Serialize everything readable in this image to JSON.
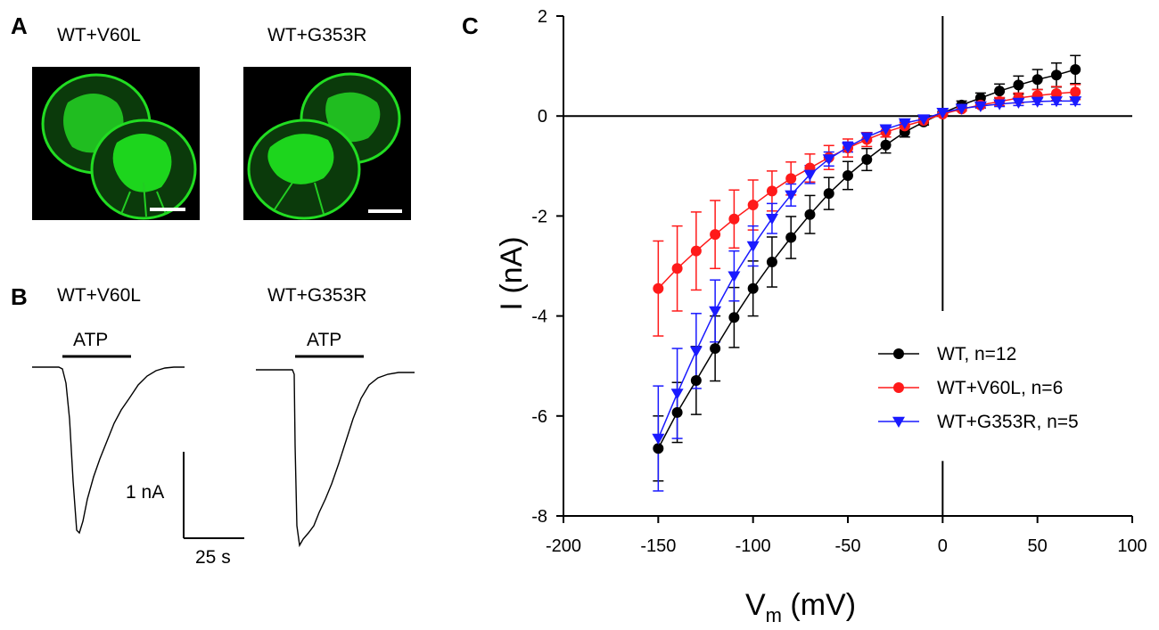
{
  "panels": {
    "a": {
      "letter": "A",
      "left_label": "WT+V60L",
      "right_label": "WT+G353R"
    },
    "b": {
      "letter": "B",
      "left_label": "WT+V60L",
      "right_label": "WT+G353R",
      "stimulus": "ATP",
      "scale_current": "1 nA",
      "scale_time": "25 s"
    },
    "c": {
      "letter": "C"
    }
  },
  "colors": {
    "fluorescence": "#1ee61e",
    "wt": "#000000",
    "v60l": "#ff1a1a",
    "g353r": "#1a1aff"
  },
  "chart_data": {
    "type": "scatter",
    "title": "",
    "xlabel_main": "V",
    "xlabel_sub": "m",
    "xlabel_unit": " (mV)",
    "ylabel": "I (nA)",
    "xlim": [
      -200,
      100
    ],
    "ylim": [
      -8,
      2
    ],
    "xticks": [
      -200,
      -150,
      -100,
      -50,
      0,
      50,
      100
    ],
    "yticks": [
      -8,
      -6,
      -4,
      -2,
      0,
      2
    ],
    "legend_position": "lower-right",
    "x": [
      -150,
      -140,
      -130,
      -120,
      -110,
      -100,
      -90,
      -80,
      -70,
      -60,
      -50,
      -40,
      -30,
      -20,
      -10,
      0,
      10,
      20,
      30,
      40,
      50,
      60,
      70
    ],
    "series": [
      {
        "name": "WT, n=12",
        "marker": "circle",
        "color": "#000000",
        "values": [
          -6.65,
          -5.93,
          -5.29,
          -4.65,
          -4.03,
          -3.45,
          -2.92,
          -2.43,
          -1.97,
          -1.55,
          -1.19,
          -0.87,
          -0.58,
          -0.32,
          -0.12,
          0.06,
          0.22,
          0.36,
          0.5,
          0.62,
          0.73,
          0.82,
          0.93
        ],
        "errors": [
          0.65,
          0.6,
          0.68,
          0.65,
          0.6,
          0.55,
          0.5,
          0.42,
          0.38,
          0.32,
          0.28,
          0.22,
          0.16,
          0.1,
          0.06,
          0.03,
          0.08,
          0.1,
          0.14,
          0.18,
          0.2,
          0.24,
          0.28
        ]
      },
      {
        "name": "WT+V60L, n=6",
        "marker": "circle",
        "color": "#ff1a1a",
        "values": [
          -3.45,
          -3.05,
          -2.7,
          -2.37,
          -2.06,
          -1.78,
          -1.5,
          -1.25,
          -1.04,
          -0.83,
          -0.64,
          -0.47,
          -0.32,
          -0.2,
          -0.09,
          0.04,
          0.14,
          0.22,
          0.29,
          0.36,
          0.41,
          0.45,
          0.48
        ],
        "errors": [
          0.95,
          0.85,
          0.78,
          0.68,
          0.58,
          0.5,
          0.4,
          0.33,
          0.28,
          0.24,
          0.18,
          0.14,
          0.1,
          0.07,
          0.04,
          0.02,
          0.04,
          0.06,
          0.08,
          0.1,
          0.12,
          0.14,
          0.15
        ]
      },
      {
        "name": "WT+G353R, n=5",
        "marker": "triangle-down",
        "color": "#1a1aff",
        "values": [
          -6.45,
          -5.55,
          -4.7,
          -3.9,
          -3.2,
          -2.6,
          -2.05,
          -1.58,
          -1.17,
          -0.86,
          -0.62,
          -0.42,
          -0.26,
          -0.14,
          -0.06,
          0.07,
          0.15,
          0.2,
          0.24,
          0.27,
          0.29,
          0.3,
          0.3
        ],
        "errors": [
          1.05,
          0.9,
          0.75,
          0.62,
          0.5,
          0.4,
          0.3,
          0.22,
          0.18,
          0.14,
          0.1,
          0.08,
          0.06,
          0.04,
          0.03,
          0.02,
          0.03,
          0.04,
          0.05,
          0.06,
          0.06,
          0.07,
          0.07
        ]
      }
    ]
  }
}
